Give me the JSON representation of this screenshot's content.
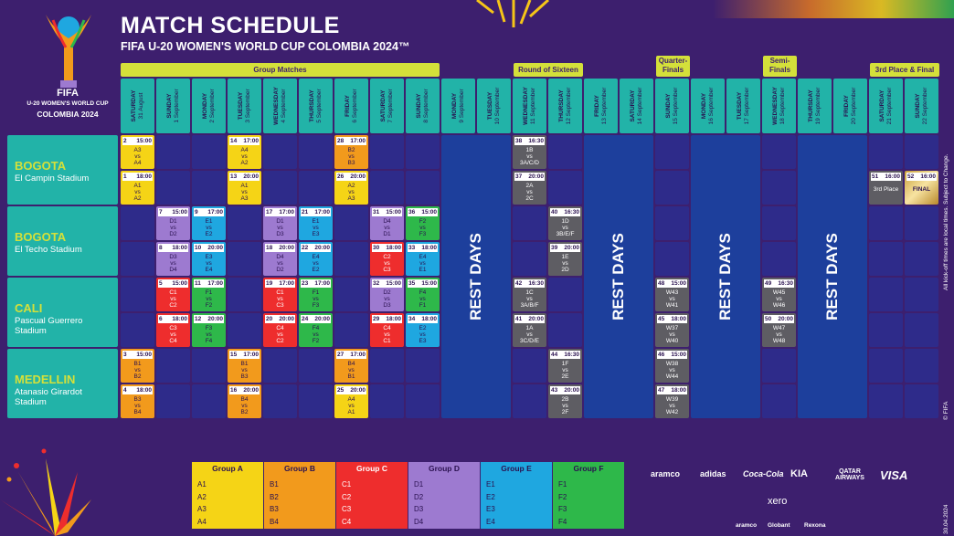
{
  "header": {
    "title": "MATCH SCHEDULE",
    "subtitle": "FIFA U-20 WOMEN'S WORLD CUP COLOMBIA 2024™"
  },
  "logo": {
    "line1": "FIFA",
    "line2": "U-20 WOMEN'S WORLD CUP",
    "line3": "COLOMBIA 2024"
  },
  "phases": [
    "Group Matches",
    "Round of Sixteen",
    "Quarter-Finals",
    "Semi-Finals",
    "3rd Place & Final"
  ],
  "days": [
    {
      "dow": "SATURDAY",
      "date": "31 August"
    },
    {
      "dow": "SUNDAY",
      "date": "1 September"
    },
    {
      "dow": "MONDAY",
      "date": "2 September"
    },
    {
      "dow": "TUESDAY",
      "date": "3 September"
    },
    {
      "dow": "WEDNESDAY",
      "date": "4 September"
    },
    {
      "dow": "THURSDAY",
      "date": "5 September"
    },
    {
      "dow": "FRIDAY",
      "date": "6 September"
    },
    {
      "dow": "SATURDAY",
      "date": "7 September"
    },
    {
      "dow": "SUNDAY",
      "date": "8 September"
    },
    {
      "dow": "MONDAY",
      "date": "9 September"
    },
    {
      "dow": "TUESDAY",
      "date": "10 September"
    },
    {
      "dow": "WEDNESDAY",
      "date": "11 September"
    },
    {
      "dow": "THURSDAY",
      "date": "12 September"
    },
    {
      "dow": "FRIDAY",
      "date": "13 September"
    },
    {
      "dow": "SATURDAY",
      "date": "14 September"
    },
    {
      "dow": "SUNDAY",
      "date": "15 September"
    },
    {
      "dow": "MONDAY",
      "date": "16 September"
    },
    {
      "dow": "TUESDAY",
      "date": "17 September"
    },
    {
      "dow": "WEDNESDAY",
      "date": "18 September"
    },
    {
      "dow": "THURSDAY",
      "date": "19 September"
    },
    {
      "dow": "FRIDAY",
      "date": "20 September"
    },
    {
      "dow": "SATURDAY",
      "date": "21 September"
    },
    {
      "dow": "SUNDAY",
      "date": "22 September"
    }
  ],
  "venues": [
    {
      "city": "BOGOTA",
      "stadium": "El Campin Stadium"
    },
    {
      "city": "BOGOTA",
      "stadium": "El Techo Stadium"
    },
    {
      "city": "CALI",
      "stadium": "Pascual Guerrero Stadium"
    },
    {
      "city": "MEDELLIN",
      "stadium": "Atanasio Girardot Stadium"
    }
  ],
  "rest_label": "REST DAYS",
  "matches": [
    {
      "row": 0,
      "col": 0,
      "no": "2",
      "time": "15:00",
      "l1": "A3",
      "l2": "vs",
      "l3": "A4",
      "color": "yellow"
    },
    {
      "row": 1,
      "col": 0,
      "no": "1",
      "time": "18:00",
      "l1": "A1",
      "l2": "vs",
      "l3": "A2",
      "color": "yellow"
    },
    {
      "row": 0,
      "col": 3,
      "no": "14",
      "time": "17:00",
      "l1": "A4",
      "l2": "vs",
      "l3": "A2",
      "color": "yellow"
    },
    {
      "row": 1,
      "col": 3,
      "no": "13",
      "time": "20:00",
      "l1": "A1",
      "l2": "vs",
      "l3": "A3",
      "color": "yellow"
    },
    {
      "row": 0,
      "col": 6,
      "no": "28",
      "time": "17:00",
      "l1": "B2",
      "l2": "vs",
      "l3": "B3",
      "color": "orange"
    },
    {
      "row": 1,
      "col": 6,
      "no": "26",
      "time": "20:00",
      "l1": "A2",
      "l2": "vs",
      "l3": "A3",
      "color": "yellow"
    },
    {
      "row": 0,
      "col": 11,
      "no": "38",
      "time": "16:30",
      "l1": "1B",
      "l2": "vs",
      "l3": "3A/C/D",
      "color": "gray"
    },
    {
      "row": 1,
      "col": 11,
      "no": "37",
      "time": "20:00",
      "l1": "2A",
      "l2": "vs",
      "l3": "2C",
      "color": "gray"
    },
    {
      "row": 1,
      "col": 21,
      "no": "51",
      "time": "16:00",
      "l1": "3rd Place",
      "l2": "",
      "l3": "",
      "color": "gray"
    },
    {
      "row": 1,
      "col": 22,
      "no": "52",
      "time": "16:00",
      "l1": "FINAL",
      "l2": "",
      "l3": "",
      "color": "gold"
    },
    {
      "row": 2,
      "col": 1,
      "no": "7",
      "time": "15:00",
      "l1": "D1",
      "l2": "vs",
      "l3": "D2",
      "color": "purple"
    },
    {
      "row": 3,
      "col": 1,
      "no": "8",
      "time": "18:00",
      "l1": "D3",
      "l2": "vs",
      "l3": "D4",
      "color": "purple"
    },
    {
      "row": 2,
      "col": 2,
      "no": "9",
      "time": "17:00",
      "l1": "E1",
      "l2": "vs",
      "l3": "E2",
      "color": "blue"
    },
    {
      "row": 3,
      "col": 2,
      "no": "10",
      "time": "20:00",
      "l1": "E3",
      "l2": "vs",
      "l3": "E4",
      "color": "blue"
    },
    {
      "row": 2,
      "col": 4,
      "no": "17",
      "time": "17:00",
      "l1": "D1",
      "l2": "vs",
      "l3": "D3",
      "color": "purple"
    },
    {
      "row": 3,
      "col": 4,
      "no": "18",
      "time": "20:00",
      "l1": "D4",
      "l2": "vs",
      "l3": "D2",
      "color": "purple"
    },
    {
      "row": 2,
      "col": 5,
      "no": "21",
      "time": "17:00",
      "l1": "E1",
      "l2": "vs",
      "l3": "E3",
      "color": "blue"
    },
    {
      "row": 3,
      "col": 5,
      "no": "22",
      "time": "20:00",
      "l1": "E4",
      "l2": "vs",
      "l3": "E2",
      "color": "blue"
    },
    {
      "row": 2,
      "col": 7,
      "no": "31",
      "time": "15:00",
      "l1": "D4",
      "l2": "vs",
      "l3": "D1",
      "color": "purple"
    },
    {
      "row": 3,
      "col": 7,
      "no": "30",
      "time": "18:00",
      "l1": "C2",
      "l2": "vs",
      "l3": "C3",
      "color": "red"
    },
    {
      "row": 2,
      "col": 8,
      "no": "36",
      "time": "15:00",
      "l1": "F2",
      "l2": "vs",
      "l3": "F3",
      "color": "green"
    },
    {
      "row": 3,
      "col": 8,
      "no": "33",
      "time": "18:00",
      "l1": "E4",
      "l2": "vs",
      "l3": "E1",
      "color": "blue"
    },
    {
      "row": 2,
      "col": 12,
      "no": "40",
      "time": "16:30",
      "l1": "1D",
      "l2": "vs",
      "l3": "3B/E/F",
      "color": "gray"
    },
    {
      "row": 3,
      "col": 12,
      "no": "39",
      "time": "20:00",
      "l1": "1E",
      "l2": "vs",
      "l3": "2D",
      "color": "gray"
    },
    {
      "row": 4,
      "col": 1,
      "no": "5",
      "time": "15:00",
      "l1": "C1",
      "l2": "vs",
      "l3": "C2",
      "color": "red"
    },
    {
      "row": 5,
      "col": 1,
      "no": "6",
      "time": "18:00",
      "l1": "C3",
      "l2": "vs",
      "l3": "C4",
      "color": "red"
    },
    {
      "row": 4,
      "col": 2,
      "no": "11",
      "time": "17:00",
      "l1": "F1",
      "l2": "vs",
      "l3": "F2",
      "color": "green"
    },
    {
      "row": 5,
      "col": 2,
      "no": "12",
      "time": "20:00",
      "l1": "F3",
      "l2": "vs",
      "l3": "F4",
      "color": "green"
    },
    {
      "row": 4,
      "col": 4,
      "no": "19",
      "time": "17:00",
      "l1": "C1",
      "l2": "vs",
      "l3": "C3",
      "color": "red"
    },
    {
      "row": 5,
      "col": 4,
      "no": "20",
      "time": "20:00",
      "l1": "C4",
      "l2": "vs",
      "l3": "C2",
      "color": "red"
    },
    {
      "row": 4,
      "col": 5,
      "no": "23",
      "time": "17:00",
      "l1": "F1",
      "l2": "vs",
      "l3": "F3",
      "color": "green"
    },
    {
      "row": 5,
      "col": 5,
      "no": "24",
      "time": "20:00",
      "l1": "F4",
      "l2": "vs",
      "l3": "F2",
      "color": "green"
    },
    {
      "row": 4,
      "col": 7,
      "no": "32",
      "time": "15:00",
      "l1": "D2",
      "l2": "vs",
      "l3": "D3",
      "color": "purple"
    },
    {
      "row": 5,
      "col": 7,
      "no": "29",
      "time": "18:00",
      "l1": "C4",
      "l2": "vs",
      "l3": "C1",
      "color": "red"
    },
    {
      "row": 4,
      "col": 8,
      "no": "35",
      "time": "15:00",
      "l1": "F4",
      "l2": "vs",
      "l3": "F1",
      "color": "green"
    },
    {
      "row": 5,
      "col": 8,
      "no": "34",
      "time": "18:00",
      "l1": "E2",
      "l2": "vs",
      "l3": "E3",
      "color": "blue"
    },
    {
      "row": 4,
      "col": 11,
      "no": "42",
      "time": "16:30",
      "l1": "1C",
      "l2": "vs",
      "l3": "3A/B/F",
      "color": "gray"
    },
    {
      "row": 5,
      "col": 11,
      "no": "41",
      "time": "20:00",
      "l1": "1A",
      "l2": "vs",
      "l3": "3C/D/E",
      "color": "gray"
    },
    {
      "row": 4,
      "col": 15,
      "no": "48",
      "time": "15:00",
      "l1": "W43",
      "l2": "vs",
      "l3": "W41",
      "color": "gray"
    },
    {
      "row": 5,
      "col": 15,
      "no": "45",
      "time": "18:00",
      "l1": "W37",
      "l2": "vs",
      "l3": "W40",
      "color": "gray"
    },
    {
      "row": 4,
      "col": 18,
      "no": "49",
      "time": "16:30",
      "l1": "W45",
      "l2": "vs",
      "l3": "W46",
      "color": "gray"
    },
    {
      "row": 5,
      "col": 18,
      "no": "50",
      "time": "20:00",
      "l1": "W47",
      "l2": "vs",
      "l3": "W48",
      "color": "gray"
    },
    {
      "row": 6,
      "col": 0,
      "no": "3",
      "time": "15:00",
      "l1": "B1",
      "l2": "vs",
      "l3": "B2",
      "color": "orange"
    },
    {
      "row": 7,
      "col": 0,
      "no": "4",
      "time": "18:00",
      "l1": "B3",
      "l2": "vs",
      "l3": "B4",
      "color": "orange"
    },
    {
      "row": 6,
      "col": 3,
      "no": "15",
      "time": "17:00",
      "l1": "B1",
      "l2": "vs",
      "l3": "B3",
      "color": "orange"
    },
    {
      "row": 7,
      "col": 3,
      "no": "16",
      "time": "20:00",
      "l1": "B4",
      "l2": "vs",
      "l3": "B2",
      "color": "orange"
    },
    {
      "row": 6,
      "col": 6,
      "no": "27",
      "time": "17:00",
      "l1": "B4",
      "l2": "vs",
      "l3": "B1",
      "color": "orange"
    },
    {
      "row": 7,
      "col": 6,
      "no": "25",
      "time": "20:00",
      "l1": "A4",
      "l2": "vs",
      "l3": "A1",
      "color": "yellow"
    },
    {
      "row": 6,
      "col": 12,
      "no": "44",
      "time": "16:30",
      "l1": "1F",
      "l2": "vs",
      "l3": "2E",
      "color": "gray"
    },
    {
      "row": 7,
      "col": 12,
      "no": "43",
      "time": "20:00",
      "l1": "2B",
      "l2": "vs",
      "l3": "2F",
      "color": "gray"
    },
    {
      "row": 6,
      "col": 15,
      "no": "46",
      "time": "15:00",
      "l1": "W38",
      "l2": "vs",
      "l3": "W44",
      "color": "gray"
    },
    {
      "row": 7,
      "col": 15,
      "no": "47",
      "time": "18:00",
      "l1": "W39",
      "l2": "vs",
      "l3": "W42",
      "color": "gray"
    }
  ],
  "groups": [
    {
      "name": "Group A",
      "teams": [
        "A1",
        "A2",
        "A3",
        "A4"
      ],
      "color": "#f5d416"
    },
    {
      "name": "Group B",
      "teams": [
        "B1",
        "B2",
        "B3",
        "B4"
      ],
      "color": "#f29a1c"
    },
    {
      "name": "Group C",
      "teams": [
        "C1",
        "C2",
        "C3",
        "C4"
      ],
      "color": "#ee2d2d"
    },
    {
      "name": "Group D",
      "teams": [
        "D1",
        "D2",
        "D3",
        "D4"
      ],
      "color": "#9d7ad0"
    },
    {
      "name": "Group E",
      "teams": [
        "E1",
        "E2",
        "E3",
        "E4"
      ],
      "color": "#1fa7e0"
    },
    {
      "name": "Group F",
      "teams": [
        "F1",
        "F2",
        "F3",
        "F4"
      ],
      "color": "#2eb84a"
    }
  ],
  "sponsors": {
    "row1": [
      "aramco",
      "adidas",
      "Coca-Cola",
      "KIA",
      "QATAR AIRWAYS",
      "VISA"
    ],
    "row2": "xero",
    "row3": [
      "aramco",
      "Globant",
      "Rexona"
    ]
  },
  "side_note": "All kick-off times are local times. Subject to Change.",
  "copyright": "© FIFA",
  "date_stamp": "30.04.2024",
  "colors": {
    "bg": "#3d1f6e",
    "teal": "#22b3a8",
    "lime": "#d4e03a",
    "rest": "#1d3f9c",
    "empty": "#2e2b8a"
  }
}
